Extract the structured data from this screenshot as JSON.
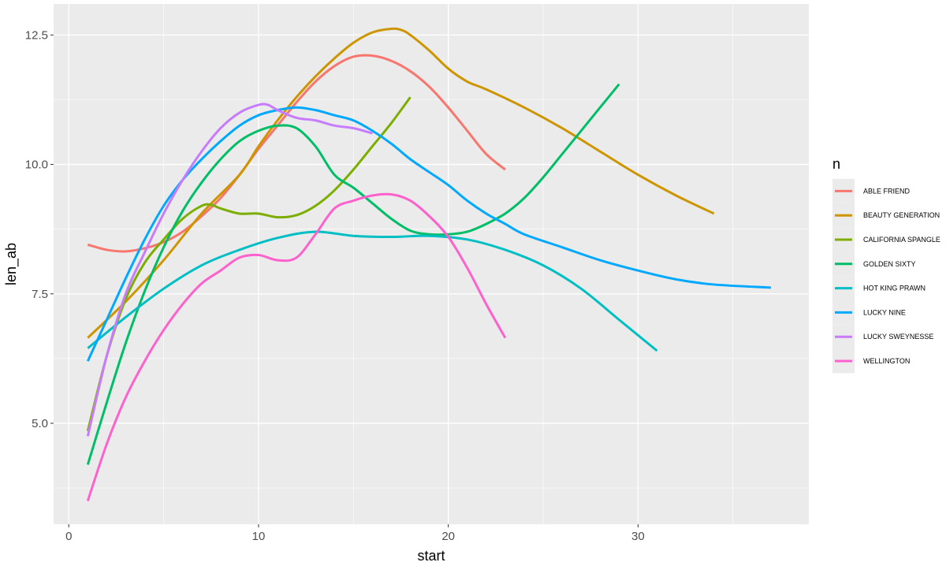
{
  "chart_data": {
    "type": "line",
    "xlabel": "start",
    "ylabel": "len_ab",
    "xlim": [
      -0.8,
      39.0
    ],
    "ylim": [
      3.05,
      13.1
    ],
    "x_ticks": [
      0,
      10,
      20,
      30
    ],
    "y_ticks": [
      5.0,
      7.5,
      10.0,
      12.5
    ],
    "x_tick_labels": [
      "0",
      "10",
      "20",
      "30"
    ],
    "y_tick_labels": [
      "5.0",
      "7.5",
      "10.0",
      "12.5"
    ],
    "grid": true,
    "legend": {
      "title": "n",
      "placement": "right"
    },
    "series": [
      {
        "name": "ABLE FRIEND",
        "color": "#F8766D",
        "x": [
          1,
          2,
          3,
          4,
          5,
          6,
          7,
          8,
          9,
          10,
          11,
          12,
          13,
          14,
          15,
          16,
          17,
          18,
          19,
          20,
          21,
          22,
          23
        ],
        "y": [
          8.45,
          8.35,
          8.32,
          8.38,
          8.5,
          8.7,
          9.0,
          9.35,
          9.8,
          10.3,
          10.75,
          11.2,
          11.6,
          11.9,
          12.08,
          12.1,
          12.0,
          11.8,
          11.5,
          11.1,
          10.65,
          10.2,
          9.9
        ]
      },
      {
        "name": "BEAUTY GENERATION",
        "color": "#CD9600",
        "x": [
          1,
          3,
          5,
          7,
          9,
          10,
          11,
          12,
          13,
          14,
          15,
          16,
          17,
          17.5,
          18,
          19,
          20,
          21,
          22,
          24,
          26,
          28,
          30,
          32,
          34
        ],
        "y": [
          6.65,
          7.35,
          8.15,
          9.05,
          9.8,
          10.35,
          10.85,
          11.3,
          11.7,
          12.05,
          12.35,
          12.55,
          12.62,
          12.6,
          12.5,
          12.2,
          11.85,
          11.6,
          11.45,
          11.1,
          10.7,
          10.25,
          9.8,
          9.4,
          9.05
        ]
      },
      {
        "name": "CALIFORNIA SPANGLE",
        "color": "#7CAE00",
        "x": [
          1,
          2,
          3,
          4,
          5,
          6,
          7,
          7.5,
          8,
          9,
          10,
          11,
          12,
          13,
          14,
          15,
          16,
          17,
          18
        ],
        "y": [
          4.85,
          6.3,
          7.4,
          8.1,
          8.55,
          8.95,
          9.2,
          9.22,
          9.15,
          9.05,
          9.05,
          8.98,
          9.02,
          9.2,
          9.5,
          9.9,
          10.35,
          10.8,
          11.3
        ]
      },
      {
        "name": "GOLDEN SIXTY",
        "color": "#00BE67",
        "x": [
          1,
          2,
          3,
          4,
          5,
          6,
          7,
          8,
          9,
          10,
          11,
          12,
          13,
          14,
          15,
          16,
          17,
          18,
          19,
          20,
          21,
          22,
          23,
          24,
          25,
          26,
          27,
          28,
          29
        ],
        "y": [
          4.2,
          5.4,
          6.55,
          7.55,
          8.4,
          9.1,
          9.65,
          10.1,
          10.45,
          10.65,
          10.75,
          10.7,
          10.35,
          9.8,
          9.55,
          9.25,
          8.95,
          8.72,
          8.65,
          8.65,
          8.7,
          8.85,
          9.05,
          9.35,
          9.75,
          10.2,
          10.65,
          11.1,
          11.55
        ]
      },
      {
        "name": "HOT KING PRAWN",
        "color": "#00BFC4",
        "x": [
          1,
          3,
          5,
          7,
          9,
          11,
          13,
          15,
          17,
          19,
          21,
          23,
          25,
          27,
          29,
          31
        ],
        "y": [
          6.45,
          7.05,
          7.6,
          8.05,
          8.35,
          8.58,
          8.7,
          8.62,
          8.6,
          8.62,
          8.55,
          8.35,
          8.05,
          7.6,
          7.0,
          6.4
        ]
      },
      {
        "name": "LUCKY NINE",
        "color": "#00A9FF",
        "x": [
          1,
          2,
          3,
          4,
          5,
          6,
          7,
          8,
          9,
          10,
          11,
          12,
          13,
          14,
          15,
          16,
          17,
          18,
          19,
          20,
          21,
          22,
          23,
          24,
          26,
          28,
          30,
          32,
          34,
          37
        ],
        "y": [
          6.2,
          7.0,
          7.8,
          8.55,
          9.2,
          9.7,
          10.1,
          10.45,
          10.75,
          10.95,
          11.05,
          11.1,
          11.05,
          10.95,
          10.85,
          10.65,
          10.4,
          10.1,
          9.85,
          9.6,
          9.3,
          9.05,
          8.85,
          8.65,
          8.4,
          8.15,
          7.95,
          7.78,
          7.68,
          7.62
        ]
      },
      {
        "name": "LUCKY SWEYNESSE",
        "color": "#C77CFF",
        "x": [
          1,
          2,
          3,
          4,
          5,
          6,
          7,
          8,
          9,
          10,
          10.5,
          11,
          12,
          13,
          14,
          15,
          16
        ],
        "y": [
          4.75,
          6.3,
          7.5,
          8.3,
          9.05,
          9.7,
          10.25,
          10.7,
          11.0,
          11.15,
          11.15,
          11.05,
          10.9,
          10.85,
          10.75,
          10.7,
          10.6
        ]
      },
      {
        "name": "WELLINGTON",
        "color": "#FF61CC",
        "x": [
          1,
          2,
          3,
          4,
          5,
          6,
          7,
          8,
          9,
          10,
          11,
          12,
          13,
          14,
          15,
          16,
          17,
          18,
          19,
          20,
          21,
          22,
          23
        ],
        "y": [
          3.5,
          4.6,
          5.5,
          6.2,
          6.8,
          7.3,
          7.7,
          7.95,
          8.2,
          8.25,
          8.15,
          8.2,
          8.65,
          9.15,
          9.3,
          9.4,
          9.42,
          9.3,
          9.0,
          8.6,
          8.0,
          7.3,
          6.65
        ]
      }
    ]
  }
}
